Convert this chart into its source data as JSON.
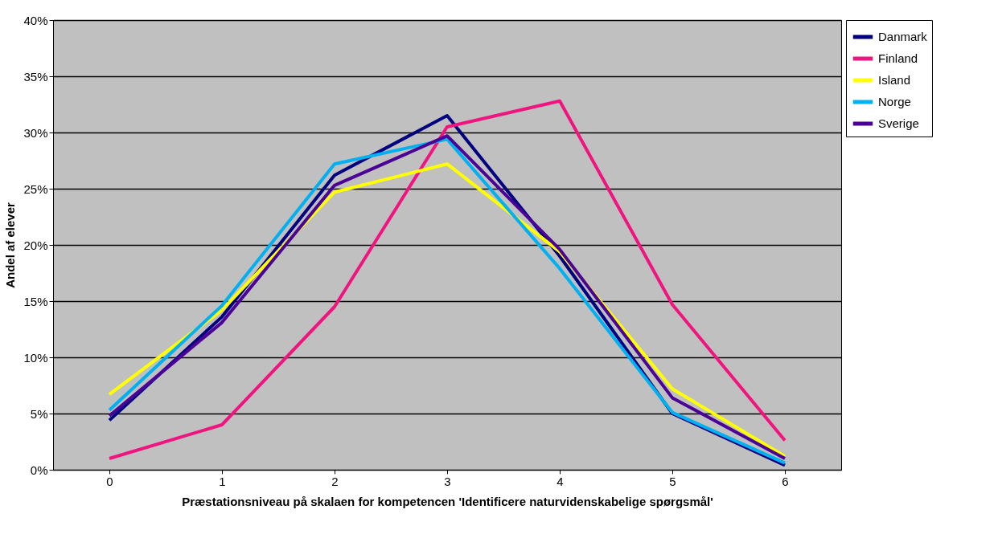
{
  "chart_data": {
    "type": "line",
    "xlabel": "Præstationsniveau på skalaen for kompetencen 'Identificere naturvidenskabelige spørgsmål'",
    "ylabel": "Andel af elever",
    "categories": [
      "0",
      "1",
      "2",
      "3",
      "4",
      "5",
      "6"
    ],
    "series": [
      {
        "name": "Danmark",
        "color": "#000080",
        "values": [
          4.4,
          13.6,
          26.2,
          31.5,
          19.0,
          5.0,
          0.4
        ]
      },
      {
        "name": "Finland",
        "color": "#f0147f",
        "values": [
          1.0,
          4.0,
          14.5,
          30.5,
          32.8,
          14.7,
          2.6
        ]
      },
      {
        "name": "Island",
        "color": "#ffff00",
        "values": [
          6.7,
          14.2,
          24.7,
          27.2,
          19.4,
          7.2,
          1.2
        ]
      },
      {
        "name": "Norge",
        "color": "#00b0f0",
        "values": [
          5.3,
          14.6,
          27.2,
          29.4,
          17.9,
          5.1,
          0.6
        ]
      },
      {
        "name": "Sverige",
        "color": "#4b0096",
        "values": [
          4.8,
          13.1,
          25.3,
          29.7,
          19.6,
          6.4,
          1.0
        ]
      }
    ],
    "ylim": [
      0,
      40
    ],
    "yticks": [
      {
        "value": 0,
        "label": "0%"
      },
      {
        "value": 5,
        "label": "5%"
      },
      {
        "value": 10,
        "label": "10%"
      },
      {
        "value": 15,
        "label": "15%"
      },
      {
        "value": 20,
        "label": "20%"
      },
      {
        "value": 25,
        "label": "25%"
      },
      {
        "value": 30,
        "label": "30%"
      },
      {
        "value": 35,
        "label": "35%"
      },
      {
        "value": 40,
        "label": "40%"
      }
    ],
    "grid": "y",
    "legend": "right",
    "marker": "none",
    "line_style": "solid"
  }
}
